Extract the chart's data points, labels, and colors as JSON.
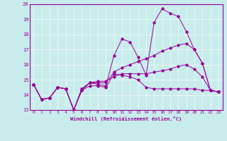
{
  "xlabel": "Windchill (Refroidissement éolien,°C)",
  "bg_color": "#c8ecec",
  "line_color": "#990099",
  "grid_color": "#b0d8d8",
  "xlim": [
    -0.5,
    23.5
  ],
  "ylim": [
    13,
    20
  ],
  "xticks": [
    0,
    1,
    2,
    3,
    4,
    5,
    6,
    7,
    8,
    9,
    10,
    11,
    12,
    13,
    14,
    15,
    16,
    17,
    18,
    19,
    20,
    21,
    22,
    23
  ],
  "yticks": [
    13,
    14,
    15,
    16,
    17,
    18,
    19,
    20
  ],
  "series": [
    [
      14.7,
      13.7,
      13.8,
      14.5,
      14.4,
      13.0,
      14.3,
      14.8,
      14.7,
      14.6,
      16.6,
      17.7,
      17.5,
      16.5,
      15.3,
      18.8,
      19.7,
      19.4,
      19.2,
      18.2,
      17.0,
      16.1,
      14.3,
      14.2
    ],
    [
      14.7,
      13.7,
      13.8,
      14.5,
      14.4,
      13.0,
      14.3,
      14.6,
      14.6,
      14.5,
      15.4,
      15.3,
      15.2,
      15.0,
      14.5,
      14.4,
      14.4,
      14.4,
      14.4,
      14.4,
      14.4,
      14.3,
      14.3,
      14.2
    ],
    [
      14.7,
      13.7,
      13.8,
      14.5,
      14.4,
      13.0,
      14.4,
      14.8,
      14.8,
      14.8,
      15.5,
      15.8,
      16.0,
      16.2,
      16.4,
      16.6,
      16.9,
      17.1,
      17.3,
      17.4,
      17.0,
      16.1,
      14.3,
      14.2
    ],
    [
      14.7,
      13.7,
      13.8,
      14.5,
      14.4,
      13.0,
      14.4,
      14.8,
      14.9,
      14.9,
      15.2,
      15.4,
      15.4,
      15.4,
      15.4,
      15.5,
      15.6,
      15.7,
      15.9,
      16.0,
      15.7,
      15.2,
      14.3,
      14.2
    ]
  ]
}
